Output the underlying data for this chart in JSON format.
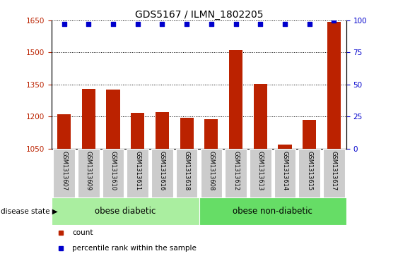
{
  "title": "GDS5167 / ILMN_1802205",
  "categories": [
    "GSM1313607",
    "GSM1313609",
    "GSM1313610",
    "GSM1313611",
    "GSM1313616",
    "GSM1313618",
    "GSM1313608",
    "GSM1313612",
    "GSM1313613",
    "GSM1313614",
    "GSM1313615",
    "GSM1313617"
  ],
  "counts": [
    1212,
    1330,
    1326,
    1218,
    1222,
    1193,
    1188,
    1510,
    1353,
    1068,
    1183,
    1645
  ],
  "percentile_ranks": [
    97,
    97,
    97,
    97,
    97,
    97,
    97,
    97,
    97,
    97,
    97,
    100
  ],
  "bar_color": "#BB2200",
  "dot_color": "#0000CC",
  "ylim_left": [
    1050,
    1650
  ],
  "ylim_right": [
    0,
    100
  ],
  "yticks_left": [
    1050,
    1200,
    1350,
    1500,
    1650
  ],
  "yticks_right": [
    0,
    25,
    50,
    75,
    100
  ],
  "group1_label": "obese diabetic",
  "group2_label": "obese non-diabetic",
  "group1_count": 6,
  "group2_count": 6,
  "legend_count_label": "count",
  "legend_pct_label": "percentile rank within the sample",
  "disease_state_label": "disease state",
  "group1_color": "#AAEEA0",
  "group2_color": "#66DD66",
  "xticklabel_bg": "#CCCCCC",
  "title_fontsize": 10,
  "tick_fontsize": 7.5,
  "group_fontsize": 8.5,
  "legend_fontsize": 7.5
}
